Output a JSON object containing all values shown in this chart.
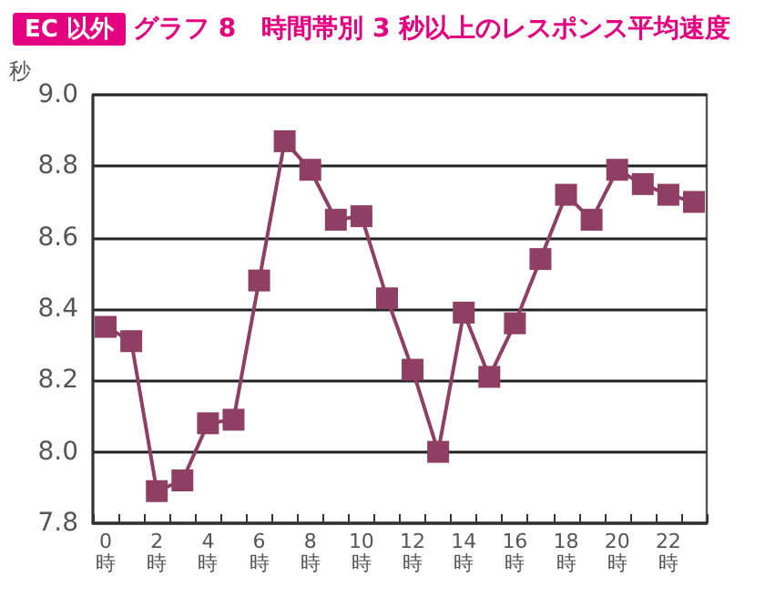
{
  "chart_data": {
    "type": "line",
    "title": "グラフ 8　時間帯別 3 秒以上のレスポンス平均速度",
    "annotations": [
      "EC 以外"
    ],
    "ylabel": "秒",
    "categories": [
      "0時",
      null,
      "2時",
      null,
      "4時",
      null,
      "6時",
      null,
      "8時",
      null,
      "10時",
      null,
      "12時",
      null,
      "14時",
      null,
      "16時",
      null,
      "18時",
      null,
      "20時",
      null,
      "22時",
      null
    ],
    "series": [
      {
        "color": "#8e3f63",
        "values": [
          8.35,
          8.31,
          7.89,
          7.92,
          8.08,
          8.09,
          8.48,
          8.87,
          8.79,
          8.65,
          8.66,
          8.43,
          8.23,
          8.0,
          8.39,
          8.21,
          8.36,
          8.54,
          8.72,
          8.65,
          8.79,
          8.75,
          8.72,
          8.7
        ]
      }
    ],
    "ylim": [
      7.8,
      9.0
    ],
    "yticks": [
      {
        "value": 7.8,
        "label": "7.8"
      },
      {
        "value": 8.0,
        "label": "8.0"
      },
      {
        "value": 8.2,
        "label": "8.2"
      },
      {
        "value": 8.4,
        "label": "8.4"
      },
      {
        "value": 8.6,
        "label": "8.6"
      },
      {
        "value": 8.8,
        "label": "8.8"
      },
      {
        "value": 9.0,
        "label": "9.0"
      }
    ],
    "grid": "y",
    "marker": "square",
    "line_style": "solid"
  }
}
